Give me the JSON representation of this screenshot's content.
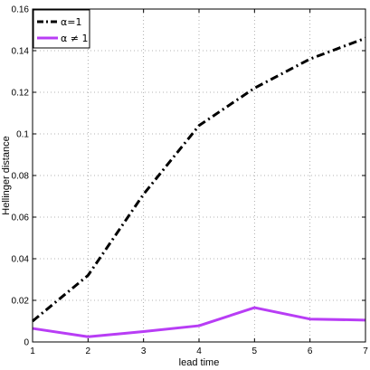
{
  "chart_data": {
    "type": "line",
    "title": "",
    "xlabel": "lead time",
    "ylabel": "Hellinger distance",
    "xlim": [
      1,
      7
    ],
    "ylim": [
      0,
      0.16
    ],
    "x_ticks": [
      1,
      2,
      3,
      4,
      5,
      6,
      7
    ],
    "y_ticks": [
      0,
      0.02,
      0.04,
      0.06,
      0.08,
      0.1,
      0.12,
      0.14,
      0.16
    ],
    "y_tick_labels": [
      "0",
      "0.02",
      "0.04",
      "0.06",
      "0.08",
      "0.1",
      "0.12",
      "0.14",
      "0.16"
    ],
    "grid": true,
    "legend_position": "top-left",
    "series": [
      {
        "name": "α=1",
        "color": "#000000",
        "style": "dash-dot",
        "x": [
          1,
          2,
          3,
          4,
          5,
          6,
          7
        ],
        "values": [
          0.01,
          0.032,
          0.071,
          0.104,
          0.122,
          0.136,
          0.146
        ]
      },
      {
        "name": "α ≠ 1",
        "color": "#b83df5",
        "style": "solid",
        "x": [
          1,
          2,
          3,
          4,
          5,
          6,
          7
        ],
        "values": [
          0.0065,
          0.0025,
          0.005,
          0.0078,
          0.0165,
          0.011,
          0.0105
        ]
      }
    ]
  }
}
